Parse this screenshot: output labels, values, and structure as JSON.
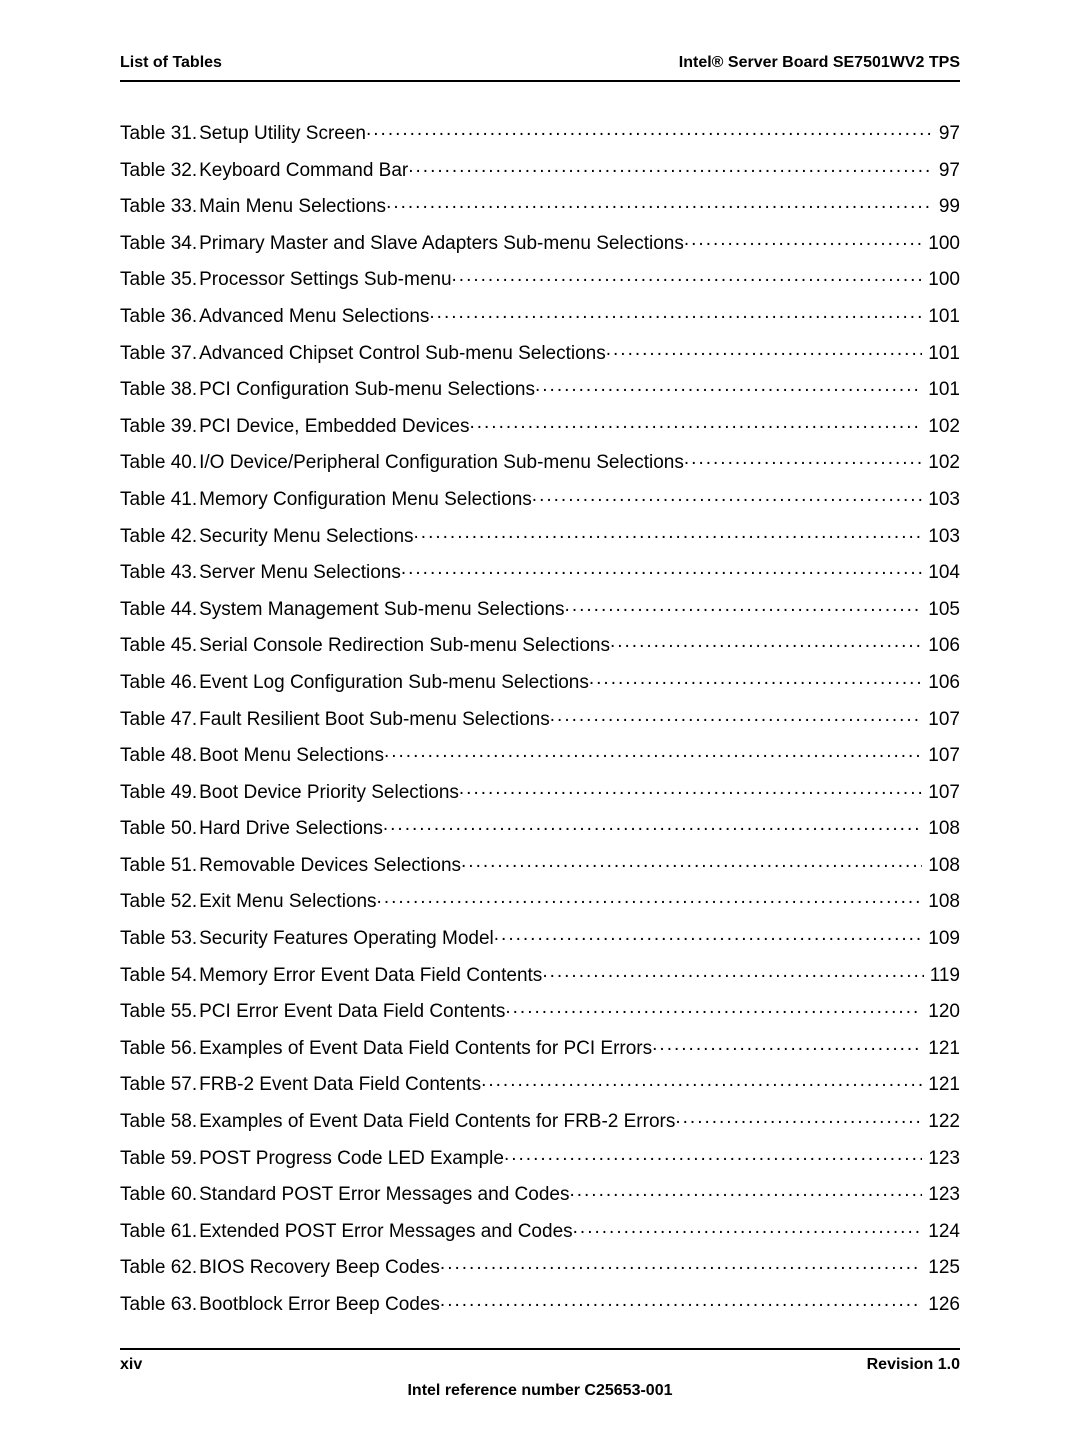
{
  "header": {
    "left": "List of Tables",
    "right": "Intel® Server Board SE7501WV2 TPS"
  },
  "toc_prefix": "Table ",
  "entries": [
    {
      "num": "31",
      "title": "Setup Utility Screen",
      "page": "97"
    },
    {
      "num": "32",
      "title": "Keyboard Command Bar",
      "page": "97"
    },
    {
      "num": "33",
      "title": "Main Menu Selections",
      "page": "99"
    },
    {
      "num": "34",
      "title": "Primary Master and Slave Adapters Sub-menu Selections",
      "page": "100"
    },
    {
      "num": "35",
      "title": "Processor Settings Sub-menu",
      "page": "100"
    },
    {
      "num": "36",
      "title": "Advanced Menu Selections",
      "page": "101"
    },
    {
      "num": "37",
      "title": "Advanced Chipset Control Sub-menu Selections",
      "page": "101"
    },
    {
      "num": "38",
      "title": " PCI Configuration Sub-menu Selections",
      "page": "101"
    },
    {
      "num": "39",
      "title": "PCI Device, Embedded Devices",
      "page": "102"
    },
    {
      "num": "40",
      "title": " I/O Device/Peripheral Configuration Sub-menu Selections",
      "page": "102"
    },
    {
      "num": "41",
      "title": "Memory Configuration Menu Selections",
      "page": "103"
    },
    {
      "num": "42",
      "title": "Security Menu Selections",
      "page": "103"
    },
    {
      "num": "43",
      "title": "Server Menu Selections",
      "page": "104"
    },
    {
      "num": "44",
      "title": "System Management Sub-menu Selections",
      "page": "105"
    },
    {
      "num": "45",
      "title": "Serial Console Redirection Sub-menu Selections",
      "page": "106"
    },
    {
      "num": "46",
      "title": "Event Log Configuration Sub-menu Selections",
      "page": "106"
    },
    {
      "num": "47",
      "title": "Fault Resilient Boot Sub-menu Selections",
      "page": "107"
    },
    {
      "num": "48",
      "title": "Boot Menu Selections",
      "page": "107"
    },
    {
      "num": "49",
      "title": " Boot Device Priority Selections",
      "page": "107"
    },
    {
      "num": "50",
      "title": "Hard Drive Selections",
      "page": "108"
    },
    {
      "num": "51",
      "title": "Removable Devices Selections",
      "page": "108"
    },
    {
      "num": "52",
      "title": "Exit Menu Selections",
      "page": "108"
    },
    {
      "num": "53",
      "title": "Security Features Operating Model",
      "page": "109"
    },
    {
      "num": "54",
      "title": "Memory Error Event Data Field Contents",
      "page": "119"
    },
    {
      "num": "55",
      "title": "PCI Error Event Data Field Contents",
      "page": "120"
    },
    {
      "num": "56",
      "title": "Examples of Event Data Field Contents for PCI Errors",
      "page": "121"
    },
    {
      "num": "57",
      "title": "FRB-2 Event Data Field Contents",
      "page": "121"
    },
    {
      "num": "58",
      "title": " Examples of Event Data Field Contents for FRB-2 Errors",
      "page": "122"
    },
    {
      "num": "59",
      "title": "POST Progress Code LED Example",
      "page": "123"
    },
    {
      "num": "60",
      "title": "Standard POST Error Messages and Codes",
      "page": "123"
    },
    {
      "num": "61",
      "title": "Extended POST Error Messages and Codes",
      "page": "124"
    },
    {
      "num": "62",
      "title": "BIOS Recovery Beep Codes",
      "page": "125"
    },
    {
      "num": "63",
      "title": "Bootblock Error Beep Codes",
      "page": "126"
    }
  ],
  "footer": {
    "left": "xiv",
    "right": "Revision 1.0",
    "center": "Intel reference number C25653-001"
  }
}
